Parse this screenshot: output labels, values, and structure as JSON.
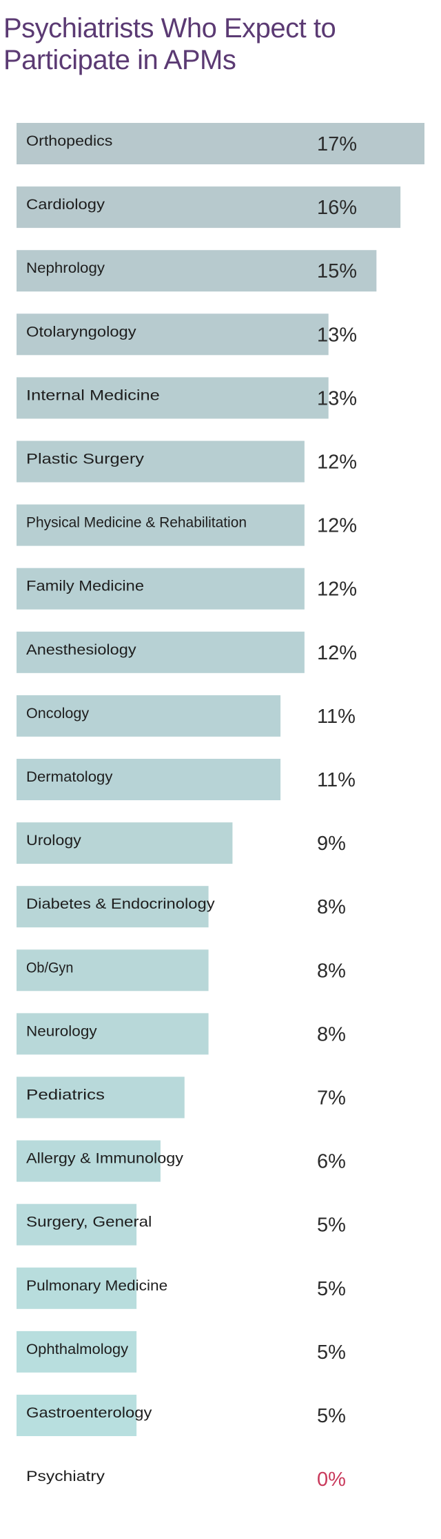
{
  "chart_data": {
    "type": "bar",
    "orientation": "horizontal",
    "title": "Psychiatrists Who Expect to Participate in APMs",
    "xlabel": "",
    "ylabel": "",
    "value_suffix": "%",
    "xlim": [
      0,
      17
    ],
    "grid": false,
    "legend": "none",
    "categories": [
      "Orthopedics",
      "Cardiology",
      "Nephrology",
      "Otolaryngology",
      "Internal Medicine",
      "Plastic Surgery",
      "Physical Medicine & Rehabilitation",
      "Family Medicine",
      "Anesthesiology",
      "Oncology",
      "Dermatology",
      "Urology",
      "Diabetes & Endocrinology",
      "Ob/Gyn",
      "Neurology",
      "Pediatrics",
      "Allergy & Immunology",
      "Surgery, General",
      "Pulmonary Medicine",
      "Ophthalmology",
      "Gastroenterology",
      "Psychiatry"
    ],
    "values": [
      17,
      16,
      15,
      13,
      13,
      12,
      12,
      12,
      12,
      11,
      11,
      9,
      8,
      8,
      8,
      7,
      6,
      5,
      5,
      5,
      5,
      0
    ],
    "value_labels": [
      "17%",
      "16%",
      "15%",
      "13%",
      "13%",
      "12%",
      "12%",
      "12%",
      "12%",
      "11%",
      "11%",
      "9%",
      "8%",
      "8%",
      "8%",
      "7%",
      "6%",
      "5%",
      "5%",
      "5%",
      "5%",
      "0%"
    ],
    "highlight_category": "Psychiatry"
  },
  "colors": {
    "title": "#5b3a73",
    "bar_top": "#b7c8cc",
    "bar_bottom": "#b8e0e0",
    "category_text": "#1e1e1e",
    "value_text": "#2b2b2b",
    "highlight_value": "#c9395b"
  }
}
